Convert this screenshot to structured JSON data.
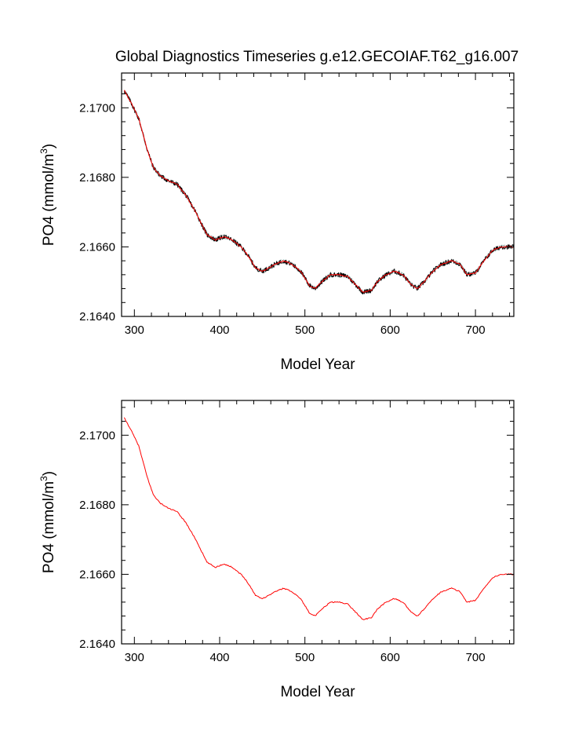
{
  "title": "Global Diagnostics Timeseries g.e12.GECOIAF.T62_g16.007",
  "colors": {
    "raw": "#000000",
    "smooth": "#ff0000"
  },
  "chart_data": [
    {
      "type": "line",
      "xlabel": "Model Year",
      "ylabel_main": "PO4 (mmol/m",
      "ylabel_sup": "3",
      "ylabel_close": ")",
      "xlim": [
        285,
        745
      ],
      "ylim": [
        2.164,
        2.171
      ],
      "xticks": [
        300,
        400,
        500,
        600,
        700
      ],
      "xtick_labels": [
        "300",
        "400",
        "500",
        "600",
        "700"
      ],
      "yticks": [
        2.164,
        2.166,
        2.168,
        2.17
      ],
      "ytick_labels": [
        "2.1640",
        "2.1660",
        "2.1680",
        "2.1700"
      ],
      "series": [
        {
          "style": "noisy",
          "color": "#000000"
        },
        {
          "style": "smooth",
          "color": "#ff0000"
        }
      ],
      "x": [
        288,
        295,
        305,
        315,
        322,
        330,
        340,
        350,
        360,
        372,
        385,
        395,
        405,
        415,
        425,
        432,
        442,
        450,
        458,
        465,
        475,
        485,
        495,
        505,
        512,
        520,
        530,
        540,
        550,
        560,
        568,
        578,
        585,
        595,
        605,
        615,
        625,
        632,
        640,
        650,
        660,
        672,
        682,
        690,
        700,
        710,
        720,
        730,
        740,
        745
      ],
      "y": [
        2.1705,
        2.1702,
        2.1697,
        2.1688,
        2.1683,
        2.16805,
        2.1679,
        2.1678,
        2.1675,
        2.167,
        2.16635,
        2.1662,
        2.1663,
        2.1662,
        2.166,
        2.1658,
        2.1654,
        2.1653,
        2.1654,
        2.1655,
        2.1656,
        2.1655,
        2.1653,
        2.1649,
        2.1648,
        2.165,
        2.1652,
        2.1652,
        2.16515,
        2.1649,
        2.1647,
        2.16475,
        2.165,
        2.1652,
        2.1653,
        2.1652,
        2.1649,
        2.1648,
        2.165,
        2.1653,
        2.1655,
        2.1656,
        2.1655,
        2.1652,
        2.16525,
        2.1656,
        2.1659,
        2.166,
        2.166,
        2.166
      ]
    },
    {
      "type": "line",
      "xlabel": "Model Year",
      "ylabel_main": "PO4 (mmol/m",
      "ylabel_sup": "3",
      "ylabel_close": ")",
      "xlim": [
        285,
        745
      ],
      "ylim": [
        2.164,
        2.171
      ],
      "xticks": [
        300,
        400,
        500,
        600,
        700
      ],
      "xtick_labels": [
        "300",
        "400",
        "500",
        "600",
        "700"
      ],
      "yticks": [
        2.164,
        2.166,
        2.168,
        2.17
      ],
      "ytick_labels": [
        "2.1640",
        "2.1660",
        "2.1680",
        "2.1700"
      ],
      "series": [
        {
          "style": "smooth",
          "color": "#ff0000"
        }
      ],
      "x": [
        288,
        295,
        305,
        315,
        322,
        330,
        340,
        350,
        360,
        372,
        385,
        395,
        405,
        415,
        425,
        432,
        442,
        450,
        458,
        465,
        475,
        485,
        495,
        505,
        512,
        520,
        530,
        540,
        550,
        560,
        568,
        578,
        585,
        595,
        605,
        615,
        625,
        632,
        640,
        650,
        660,
        672,
        682,
        690,
        700,
        710,
        720,
        730,
        740,
        745
      ],
      "y": [
        2.1705,
        2.1702,
        2.1697,
        2.1688,
        2.1683,
        2.16805,
        2.1679,
        2.1678,
        2.1675,
        2.167,
        2.16635,
        2.1662,
        2.1663,
        2.1662,
        2.166,
        2.1658,
        2.1654,
        2.1653,
        2.1654,
        2.1655,
        2.1656,
        2.1655,
        2.1653,
        2.1649,
        2.1648,
        2.165,
        2.1652,
        2.1652,
        2.16515,
        2.1649,
        2.1647,
        2.16475,
        2.165,
        2.1652,
        2.1653,
        2.1652,
        2.1649,
        2.1648,
        2.165,
        2.1653,
        2.1655,
        2.1656,
        2.1655,
        2.1652,
        2.16525,
        2.1656,
        2.1659,
        2.166,
        2.166,
        2.166
      ]
    }
  ]
}
